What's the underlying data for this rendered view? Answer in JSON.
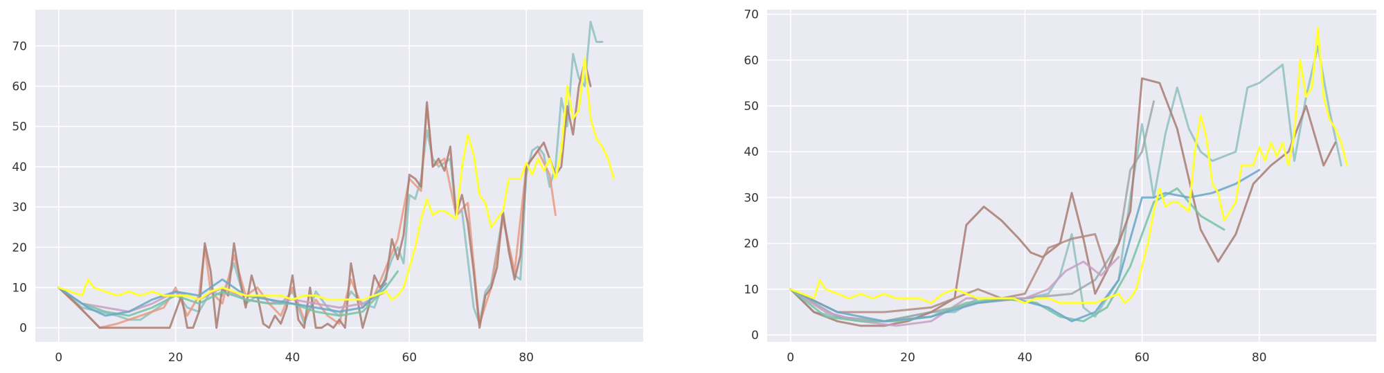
{
  "chart_data": [
    {
      "type": "line",
      "title": "",
      "xlabel": "",
      "ylabel": "",
      "xlim": [
        -4,
        100
      ],
      "ylim": [
        -3.5,
        79
      ],
      "grid": true,
      "legend": "none",
      "xticks": [
        0,
        20,
        40,
        60,
        80
      ],
      "yticks": [
        0,
        10,
        20,
        30,
        40,
        50,
        60,
        70
      ],
      "series": [
        {
          "color": "#8fbfbf",
          "x": [
            0,
            4,
            7,
            10,
            12,
            14,
            16,
            18,
            20,
            22,
            24,
            26,
            28,
            30,
            32,
            34,
            36,
            38,
            40,
            42,
            44,
            46,
            48,
            50,
            52,
            54,
            56,
            57,
            58,
            59,
            60,
            61,
            62,
            63,
            64,
            65,
            66,
            67,
            68,
            69,
            70,
            71,
            72,
            73,
            74,
            76,
            78,
            79,
            80,
            81,
            82,
            83,
            84,
            85,
            86,
            87,
            88,
            89,
            90,
            91,
            92,
            93
          ],
          "y": [
            10,
            5,
            4,
            3,
            2,
            2,
            4,
            6,
            9,
            5,
            4,
            9,
            8,
            16,
            6,
            8,
            7,
            6,
            9,
            1,
            9,
            5,
            3,
            9,
            6,
            5,
            13,
            17,
            20,
            16,
            33,
            32,
            37,
            49,
            42,
            40,
            41,
            42,
            28,
            29,
            17,
            5,
            1,
            9,
            11,
            28,
            13,
            12,
            38,
            44,
            45,
            43,
            35,
            40,
            57,
            50,
            68,
            62,
            60,
            76,
            71,
            71
          ]
        },
        {
          "color": "#e89a82",
          "x": [
            0,
            5,
            7,
            10,
            14,
            18,
            20,
            22,
            24,
            25,
            26,
            28,
            30,
            32,
            34,
            36,
            38,
            40,
            42,
            44,
            46,
            48,
            50,
            52,
            54,
            56,
            58,
            60,
            62,
            63,
            64,
            66,
            68,
            70,
            72,
            74,
            76,
            78,
            80,
            82,
            84,
            85
          ],
          "y": [
            10,
            3,
            0,
            1,
            3,
            5,
            10,
            3,
            8,
            20,
            9,
            6,
            18,
            8,
            10,
            6,
            3,
            10,
            2,
            7,
            3,
            1,
            12,
            5,
            8,
            15,
            22,
            37,
            34,
            55,
            40,
            42,
            28,
            31,
            1,
            10,
            27,
            14,
            40,
            44,
            38,
            28
          ]
        },
        {
          "color": "#a87d72",
          "x": [
            0,
            3,
            5,
            7,
            9,
            11,
            13,
            15,
            17,
            19,
            21,
            22,
            23,
            24,
            25,
            26,
            27,
            28,
            29,
            30,
            31,
            32,
            33,
            34,
            35,
            36,
            37,
            38,
            39,
            40,
            41,
            42,
            43,
            44,
            45,
            46,
            47,
            48,
            49,
            50,
            51,
            52,
            53,
            54,
            55,
            56,
            57,
            58,
            59,
            60,
            61,
            62,
            63,
            64,
            65,
            66,
            67,
            68,
            69,
            70,
            71,
            72,
            73,
            74,
            75,
            76,
            77,
            78,
            79,
            80,
            81,
            82,
            83,
            84,
            85,
            86,
            87,
            88,
            89,
            90,
            91
          ],
          "y": [
            10,
            6,
            3,
            0,
            0,
            0,
            0,
            0,
            0,
            0,
            8,
            0,
            0,
            4,
            21,
            14,
            0,
            10,
            8,
            21,
            12,
            5,
            13,
            8,
            1,
            0,
            3,
            1,
            5,
            13,
            2,
            0,
            10,
            0,
            0,
            1,
            0,
            2,
            0,
            16,
            8,
            0,
            5,
            13,
            10,
            12,
            22,
            17,
            23,
            38,
            37,
            35,
            56,
            40,
            42,
            39,
            45,
            28,
            33,
            26,
            14,
            0,
            8,
            10,
            15,
            29,
            19,
            12,
            18,
            40,
            42,
            44,
            46,
            42,
            38,
            40,
            55,
            48,
            60,
            66,
            60
          ]
        },
        {
          "color": "#c69fc6",
          "x": [
            0,
            4,
            8,
            12,
            16,
            20,
            24,
            28,
            32,
            36,
            40,
            44,
            48,
            52,
            56
          ],
          "y": [
            10,
            6,
            5,
            4,
            6,
            9,
            7,
            10,
            7,
            6,
            7,
            6,
            5,
            6,
            9
          ]
        },
        {
          "color": "#76c3a3",
          "x": [
            0,
            4,
            8,
            12,
            16,
            20,
            24,
            28,
            32,
            36,
            40,
            44,
            48,
            52,
            56,
            58
          ],
          "y": [
            10,
            6,
            4,
            3,
            5,
            8,
            6,
            9,
            7,
            6,
            6,
            4,
            3,
            4,
            10,
            14
          ]
        },
        {
          "color": "#6aa6c8",
          "x": [
            0,
            5,
            8,
            12,
            16,
            20,
            24,
            28,
            32,
            36,
            40,
            44,
            48,
            52,
            56
          ],
          "y": [
            10,
            5,
            3,
            4,
            7,
            9,
            8,
            12,
            8,
            7,
            6,
            5,
            4,
            5,
            11
          ]
        },
        {
          "color": "#ffff33",
          "x": [
            0,
            2,
            4,
            5,
            6,
            8,
            10,
            12,
            14,
            16,
            18,
            20,
            22,
            24,
            26,
            28,
            30,
            32,
            34,
            36,
            38,
            40,
            42,
            44,
            46,
            48,
            50,
            52,
            54,
            56,
            57,
            58,
            59,
            60,
            61,
            62,
            63,
            64,
            65,
            66,
            67,
            68,
            69,
            70,
            71,
            72,
            73,
            74,
            75,
            76,
            77,
            78,
            79,
            80,
            81,
            82,
            83,
            84,
            85,
            86,
            87,
            88,
            89,
            90,
            91,
            92,
            93,
            94,
            95
          ],
          "y": [
            10,
            9,
            8,
            12,
            10,
            9,
            8,
            9,
            8,
            9,
            8,
            8,
            8,
            7,
            9,
            10,
            9,
            8,
            8,
            8,
            8,
            7,
            8,
            8,
            7,
            7,
            7,
            7,
            8,
            9,
            7,
            8,
            10,
            15,
            20,
            27,
            32,
            28,
            29,
            29,
            28,
            27,
            40,
            48,
            43,
            33,
            31,
            25,
            27,
            29,
            37,
            37,
            37,
            41,
            38,
            42,
            39,
            42,
            37,
            44,
            60,
            52,
            54,
            67,
            52,
            47,
            45,
            42,
            37
          ]
        }
      ]
    },
    {
      "type": "line",
      "title": "",
      "xlabel": "",
      "ylabel": "",
      "xlim": [
        -4,
        100
      ],
      "ylim": [
        -1.5,
        71
      ],
      "grid": true,
      "legend": "none",
      "xticks": [
        0,
        20,
        40,
        60,
        80
      ],
      "yticks": [
        0,
        10,
        20,
        30,
        40,
        50,
        60,
        70
      ],
      "series": [
        {
          "color": "#8fbfbf",
          "x": [
            0,
            4,
            8,
            12,
            16,
            20,
            24,
            28,
            32,
            36,
            40,
            44,
            46,
            48,
            50,
            52,
            54,
            56,
            58,
            60,
            62,
            64,
            66,
            68,
            70,
            72,
            74,
            76,
            78,
            80,
            82,
            84,
            86,
            88,
            90,
            92,
            94
          ],
          "y": [
            10,
            5,
            4,
            3,
            3,
            4,
            5,
            5,
            8,
            8,
            8,
            9,
            13,
            22,
            6,
            4,
            8,
            12,
            30,
            46,
            30,
            44,
            54,
            45,
            40,
            38,
            39,
            40,
            54,
            55,
            57,
            59,
            38,
            52,
            63,
            49,
            37
          ]
        },
        {
          "color": "#9fa8a8",
          "x": [
            0,
            8,
            16,
            24,
            32,
            40,
            48,
            52,
            56,
            58,
            60,
            62
          ],
          "y": [
            10,
            4,
            3,
            5,
            7,
            8,
            9,
            12,
            20,
            36,
            40,
            51
          ]
        },
        {
          "color": "#a87d72",
          "x": [
            0,
            4,
            8,
            12,
            16,
            20,
            24,
            28,
            30,
            33,
            36,
            39,
            41,
            43,
            45,
            46,
            48,
            50,
            52,
            54,
            56,
            58,
            60,
            63,
            66,
            70,
            73,
            76,
            79,
            82,
            85,
            88,
            91,
            93
          ],
          "y": [
            10,
            5,
            3,
            2,
            2,
            3,
            5,
            8,
            24,
            28,
            25,
            21,
            18,
            17,
            19,
            20,
            31,
            21,
            9,
            14,
            20,
            27,
            56,
            55,
            45,
            23,
            16,
            22,
            33,
            37,
            40,
            50,
            37,
            42
          ]
        },
        {
          "color": "#b08a80",
          "x": [
            0,
            8,
            16,
            24,
            28,
            32,
            36,
            40,
            44,
            48,
            52,
            54,
            56
          ],
          "y": [
            10,
            5,
            5,
            6,
            8,
            10,
            8,
            9,
            19,
            21,
            22,
            14,
            20
          ]
        },
        {
          "color": "#c69fc6",
          "x": [
            0,
            6,
            12,
            18,
            24,
            30,
            36,
            40,
            44,
            47,
            50,
            53,
            56
          ],
          "y": [
            10,
            5,
            3,
            2,
            3,
            8,
            8,
            8,
            10,
            14,
            16,
            13,
            17
          ]
        },
        {
          "color": "#76c3a3",
          "x": [
            0,
            6,
            12,
            18,
            24,
            30,
            36,
            42,
            46,
            50,
            54,
            58,
            62,
            66,
            70,
            74
          ],
          "y": [
            10,
            4,
            3,
            3,
            4,
            7,
            8,
            7,
            4,
            3,
            6,
            15,
            29,
            32,
            26,
            23
          ]
        },
        {
          "color": "#6aa6c8",
          "x": [
            0,
            8,
            16,
            24,
            32,
            38,
            44,
            48,
            52,
            56,
            60,
            62,
            64,
            68,
            72,
            76,
            80
          ],
          "y": [
            10,
            5,
            3,
            4,
            7,
            8,
            6,
            3,
            5,
            12,
            30,
            30,
            31,
            30,
            31,
            33,
            36
          ]
        },
        {
          "color": "#ffff33",
          "x": [
            0,
            2,
            4,
            5,
            6,
            8,
            10,
            12,
            14,
            16,
            18,
            20,
            22,
            24,
            26,
            28,
            30,
            32,
            34,
            36,
            38,
            40,
            42,
            44,
            46,
            48,
            50,
            52,
            54,
            56,
            57,
            58,
            59,
            60,
            61,
            62,
            63,
            64,
            65,
            66,
            67,
            68,
            69,
            70,
            71,
            72,
            73,
            74,
            75,
            76,
            77,
            78,
            79,
            80,
            81,
            82,
            83,
            84,
            85,
            86,
            87,
            88,
            89,
            90,
            91,
            92,
            93,
            94,
            95
          ],
          "y": [
            10,
            9,
            8,
            12,
            10,
            9,
            8,
            9,
            8,
            9,
            8,
            8,
            8,
            7,
            9,
            10,
            9,
            8,
            8,
            8,
            8,
            7,
            8,
            8,
            7,
            7,
            7,
            7,
            8,
            9,
            7,
            8,
            10,
            15,
            20,
            27,
            32,
            28,
            29,
            29,
            28,
            27,
            40,
            48,
            43,
            33,
            31,
            25,
            27,
            29,
            37,
            37,
            37,
            41,
            38,
            42,
            39,
            42,
            37,
            44,
            60,
            52,
            54,
            67,
            52,
            47,
            45,
            42,
            37
          ]
        }
      ]
    }
  ]
}
